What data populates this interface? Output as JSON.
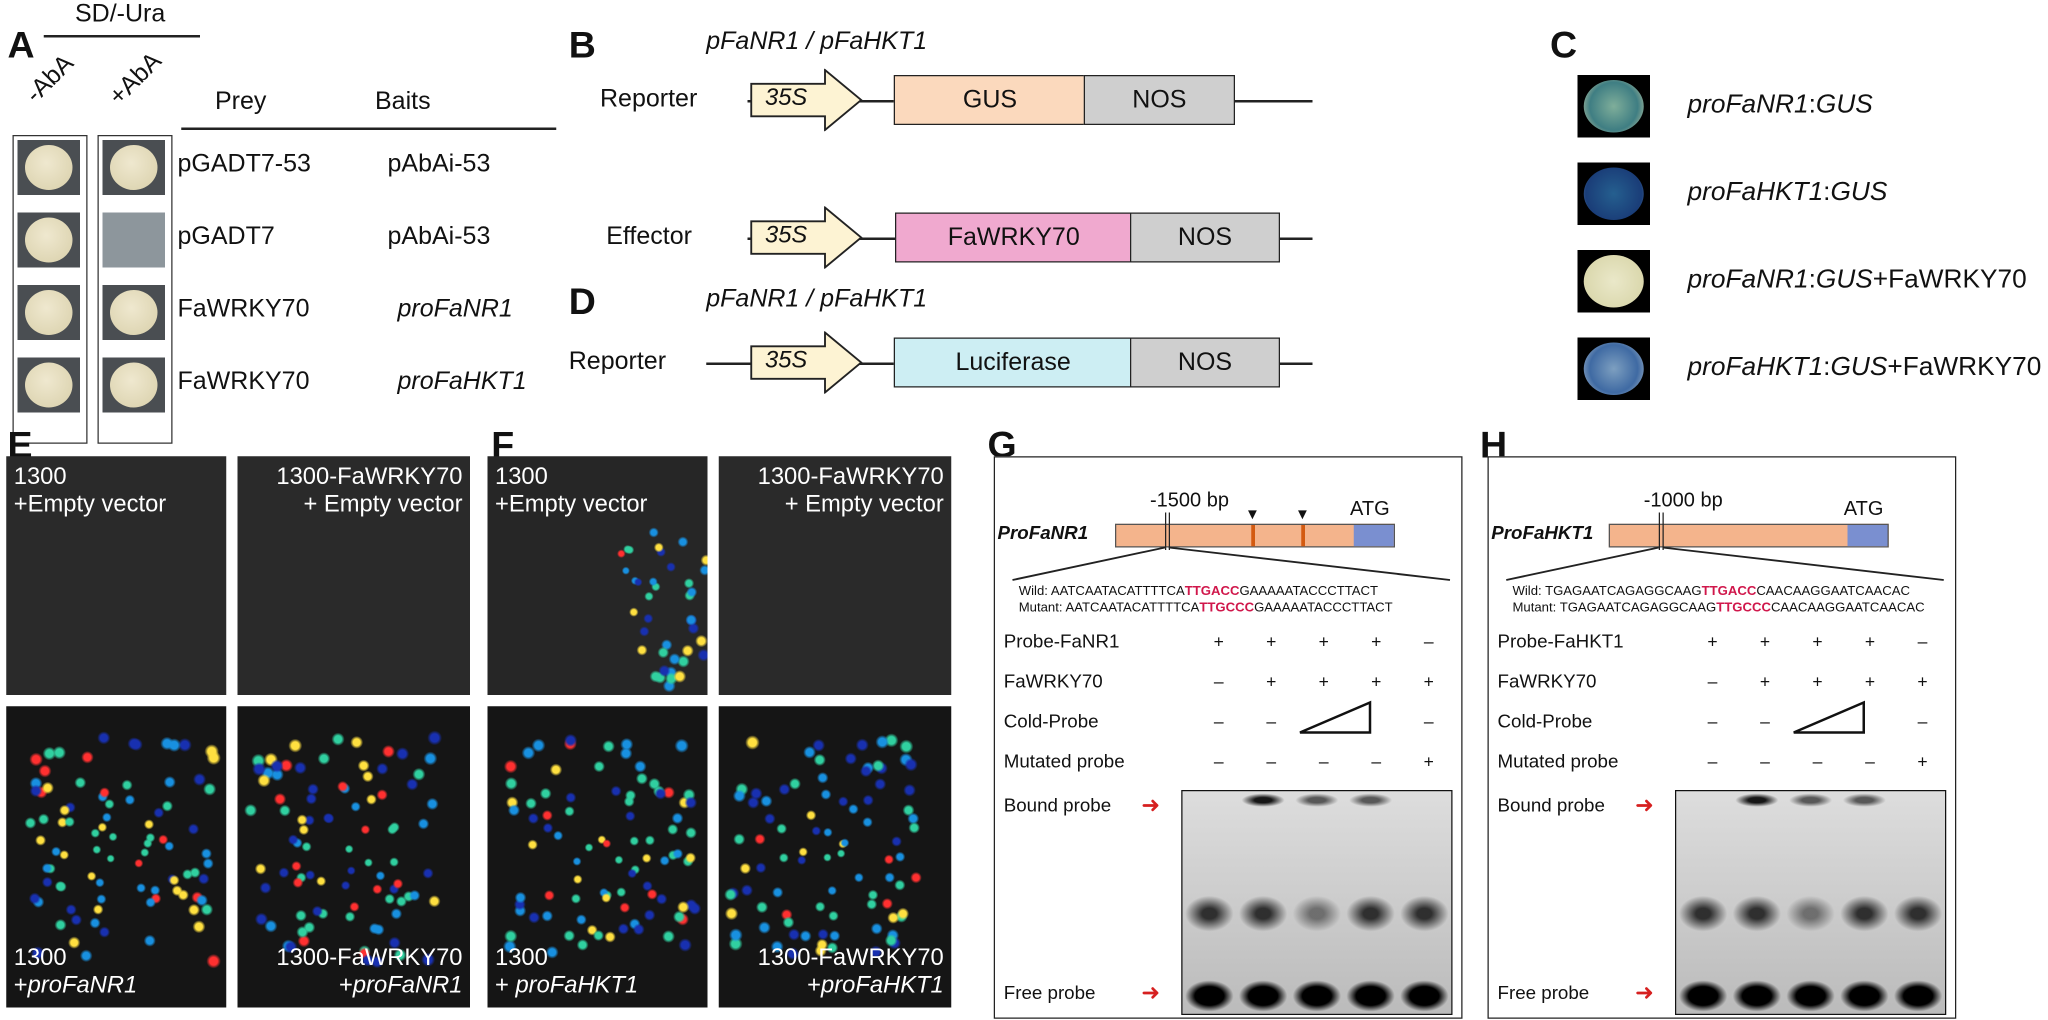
{
  "panelA": {
    "label": "A",
    "medium": "SD/-Ura",
    "col1": "-AbA",
    "col2": "+AbA",
    "prey_header": "Prey",
    "baits_header": "Baits",
    "rows": [
      {
        "prey": "pGADT7-53",
        "bait": "pAbAi-53",
        "minus": true,
        "plus": true
      },
      {
        "prey": "pGADT7",
        "bait": "pAbAi-53",
        "minus": true,
        "plus": false
      },
      {
        "prey": "FaWRKY70",
        "bait": "proFaNR1",
        "minus": true,
        "plus": true
      },
      {
        "prey": "FaWRKY70",
        "bait": "proFaHKT1",
        "minus": true,
        "plus": true
      }
    ]
  },
  "panelB": {
    "label": "B",
    "promoter": "pFaNR1 / pFaHKT1",
    "reporter": "Reporter",
    "effector": "Effector",
    "p35s": "35S",
    "gus": "GUS",
    "nos": "NOS",
    "fawrky70": "FaWRKY70",
    "colors": {
      "gus": "#fbd9bd",
      "effector": "#f0a9cf",
      "nos": "#cfcfcf",
      "arrow": "#fdf3d3"
    }
  },
  "panelC": {
    "label": "C",
    "items": [
      {
        "pro": "proFaNR1",
        "gus": "GUS",
        "extra": ""
      },
      {
        "pro": "proFaHKT1",
        "gus": "GUS",
        "extra": ""
      },
      {
        "pro": "proFaNR1",
        "gus": "GUS",
        "extra": "+FaWRKY70"
      },
      {
        "pro": "proFaHKT1",
        "gus": "GUS",
        "extra": "+FaWRKY70"
      }
    ]
  },
  "panelD": {
    "label": "D",
    "promoter": "pFaNR1 / pFaHKT1",
    "reporter": "Reporter",
    "p35s": "35S",
    "luciferase": "Luciferase",
    "nos": "NOS",
    "colors": {
      "luciferase": "#cdeef3"
    }
  },
  "panelE": {
    "label": "E",
    "tl": [
      "1300",
      "+Empty vector"
    ],
    "tr": [
      "1300-FaWRKY70",
      "+ Empty vector"
    ],
    "bl": [
      "1300",
      "+",
      "proFaNR1"
    ],
    "br": [
      "1300-FaWRKY70",
      "+",
      "proFaNR1"
    ]
  },
  "panelF": {
    "label": "F",
    "tl": [
      "1300",
      "+Empty vector"
    ],
    "tr": [
      "1300-FaWRKY70",
      "+ Empty vector"
    ],
    "bl": [
      "1300",
      "+ ",
      "proFaHKT1"
    ],
    "br": [
      "1300-FaWRKY70",
      "+",
      "proFaHKT1"
    ]
  },
  "panelG": {
    "label": "G",
    "promoter": "ProFaNR1",
    "position": "-1500 bp",
    "atg": "ATG",
    "wild": {
      "prefix": "Wild: ",
      "pre": "AATCAATACATTTTCA",
      "core": "TTGACC",
      "post": "GAAAAATACCCTTACT"
    },
    "mutant": {
      "prefix": "Mutant: ",
      "pre": "AATCAATACATTTTCA",
      "core": "TTGCCC",
      "post": "GAAAAATACCCTTACT"
    },
    "rows": [
      {
        "label": "Probe-FaNR1",
        "signs": [
          "+",
          "+",
          "+",
          "+",
          "–"
        ]
      },
      {
        "label": "FaWRKY70",
        "signs": [
          "–",
          "+",
          "+",
          "+",
          "+"
        ]
      },
      {
        "label": "Cold-Probe",
        "signs": [
          "–",
          "–",
          "",
          "",
          "–"
        ]
      },
      {
        "label": "Mutated probe",
        "signs": [
          "–",
          "–",
          "–",
          "–",
          "+"
        ]
      }
    ],
    "bound": "Bound probe",
    "free": "Free probe"
  },
  "panelH": {
    "label": "H",
    "promoter": "ProFaHKT1",
    "position": "-1000 bp",
    "atg": "ATG",
    "wild": {
      "prefix": "Wild: ",
      "pre": "TGAGAATCAGAGGCAAG",
      "core": "TTGACC",
      "post": "CAACAAGGAATCAACAC"
    },
    "mutant": {
      "prefix": "Mutant: ",
      "pre": "TGAGAATCAGAGGCAAG",
      "core": "TTGCCC",
      "post": "CAACAAGGAATCAACAC"
    },
    "rows": [
      {
        "label": "Probe-FaHKT1",
        "signs": [
          "+",
          "+",
          "+",
          "+",
          "–"
        ]
      },
      {
        "label": "FaWRKY70",
        "signs": [
          "–",
          "+",
          "+",
          "+",
          "+"
        ]
      },
      {
        "label": "Cold-Probe",
        "signs": [
          "–",
          "–",
          "",
          "",
          "–"
        ]
      },
      {
        "label": "Mutated probe",
        "signs": [
          "–",
          "–",
          "–",
          "–",
          "+"
        ]
      }
    ],
    "bound": "Bound probe",
    "free": "Free probe"
  }
}
